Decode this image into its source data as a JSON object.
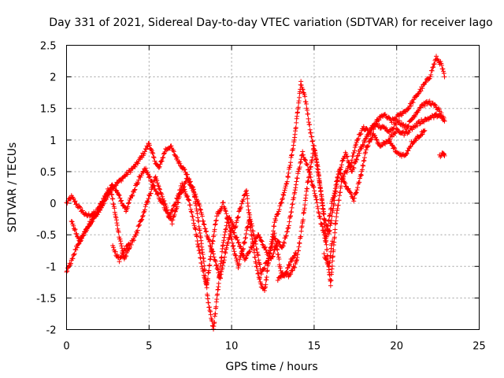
{
  "chart_data": {
    "type": "scatter",
    "title": "Day 331 of 2021, Sidereal Day-to-day VTEC variation (SDTVAR) for receiver Iago",
    "xlabel": "GPS time / hours",
    "ylabel": "SDTVAR / TECUs",
    "xlim": [
      0,
      25
    ],
    "ylim": [
      -2,
      2.5
    ],
    "xticks": [
      0,
      5,
      10,
      15,
      20,
      25
    ],
    "yticks": [
      -2,
      -1.5,
      -1,
      -0.5,
      0,
      0.5,
      1,
      1.5,
      2,
      2.5
    ],
    "grid": true,
    "marker": "plus",
    "series": [
      {
        "color": "#ff0000",
        "tracks": [
          [
            [
              0.0,
              0.0
            ],
            [
              0.3,
              0.1
            ],
            [
              0.7,
              -0.05
            ],
            [
              1.2,
              -0.2
            ],
            [
              1.8,
              -0.15
            ],
            [
              2.5,
              0.2
            ],
            [
              3.0,
              0.3
            ],
            [
              3.6,
              0.45
            ],
            [
              4.2,
              0.6
            ],
            [
              4.7,
              0.8
            ],
            [
              5.0,
              0.95
            ],
            [
              5.3,
              0.7
            ],
            [
              5.6,
              0.55
            ],
            [
              6.0,
              0.85
            ],
            [
              6.3,
              0.9
            ],
            [
              6.7,
              0.7
            ],
            [
              7.2,
              0.5
            ],
            [
              7.7,
              0.2
            ],
            [
              8.0,
              -0.3
            ],
            [
              8.3,
              -0.9
            ],
            [
              8.6,
              -1.6
            ],
            [
              8.9,
              -2.0
            ],
            [
              9.2,
              -1.3
            ],
            [
              9.5,
              -0.6
            ],
            [
              9.8,
              -0.2
            ],
            [
              10.2,
              -0.4
            ],
            [
              10.5,
              -0.1
            ],
            [
              10.9,
              0.2
            ],
            [
              11.2,
              -0.5
            ],
            [
              11.5,
              -1.0
            ],
            [
              11.8,
              -1.3
            ],
            [
              12.0,
              -1.4
            ],
            [
              12.3,
              -0.8
            ],
            [
              12.6,
              -0.3
            ],
            [
              13.0,
              0.0
            ],
            [
              13.4,
              0.4
            ],
            [
              13.8,
              1.0
            ],
            [
              14.2,
              1.9
            ],
            [
              14.5,
              1.6
            ],
            [
              14.8,
              1.1
            ],
            [
              15.2,
              0.6
            ],
            [
              15.5,
              0.0
            ],
            [
              15.8,
              -0.8
            ],
            [
              16.0,
              -1.3
            ],
            [
              16.3,
              -0.3
            ],
            [
              16.7,
              0.4
            ],
            [
              17.2,
              0.6
            ],
            [
              17.6,
              1.0
            ],
            [
              18.0,
              1.2
            ],
            [
              18.4,
              1.1
            ],
            [
              18.8,
              1.3
            ],
            [
              19.2,
              1.4
            ],
            [
              19.7,
              1.3
            ],
            [
              20.2,
              1.4
            ],
            [
              20.7,
              1.5
            ],
            [
              21.2,
              1.7
            ],
            [
              21.6,
              1.85
            ],
            [
              22.0,
              2.0
            ],
            [
              22.4,
              2.3
            ],
            [
              22.7,
              2.2
            ],
            [
              22.9,
              2.0
            ]
          ],
          [
            [
              0.0,
              -1.1
            ],
            [
              0.3,
              -0.9
            ],
            [
              0.6,
              -0.7
            ],
            [
              1.0,
              -0.5
            ],
            [
              1.5,
              -0.3
            ],
            [
              2.0,
              -0.1
            ],
            [
              2.4,
              0.1
            ],
            [
              2.8,
              0.3
            ],
            [
              3.2,
              0.1
            ],
            [
              3.6,
              -0.1
            ],
            [
              4.0,
              0.15
            ],
            [
              4.4,
              0.4
            ],
            [
              4.8,
              0.55
            ],
            [
              5.2,
              0.3
            ],
            [
              5.6,
              0.1
            ],
            [
              6.0,
              -0.1
            ],
            [
              6.4,
              -0.3
            ],
            [
              6.9,
              0.15
            ],
            [
              7.3,
              0.4
            ],
            [
              7.7,
              0.2
            ],
            [
              8.1,
              -0.1
            ],
            [
              8.5,
              -0.5
            ],
            [
              9.0,
              -0.9
            ],
            [
              9.3,
              -1.2
            ],
            [
              9.6,
              -0.8
            ],
            [
              10.0,
              -0.4
            ],
            [
              10.4,
              -0.6
            ],
            [
              10.8,
              -0.9
            ],
            [
              11.2,
              -0.7
            ],
            [
              11.6,
              -0.5
            ],
            [
              12.0,
              -0.7
            ],
            [
              12.4,
              -0.9
            ],
            [
              12.8,
              -0.6
            ],
            [
              13.1,
              -0.7
            ],
            [
              13.5,
              -0.3
            ],
            [
              13.9,
              0.3
            ],
            [
              14.3,
              0.8
            ],
            [
              14.7,
              0.5
            ],
            [
              15.1,
              0.1
            ],
            [
              15.4,
              -0.3
            ],
            [
              15.7,
              -0.6
            ],
            [
              16.0,
              -0.1
            ],
            [
              16.4,
              0.4
            ],
            [
              16.9,
              0.8
            ],
            [
              17.3,
              0.5
            ],
            [
              17.7,
              0.8
            ],
            [
              18.1,
              1.0
            ],
            [
              18.6,
              1.25
            ],
            [
              19.1,
              1.2
            ],
            [
              19.6,
              1.15
            ],
            [
              20.1,
              1.3
            ],
            [
              20.6,
              1.2
            ],
            [
              21.1,
              1.4
            ],
            [
              21.5,
              1.55
            ],
            [
              22.0,
              1.6
            ],
            [
              22.5,
              1.5
            ],
            [
              22.9,
              1.3
            ]
          ],
          [
            [
              0.3,
              -0.3
            ],
            [
              0.8,
              -0.6
            ],
            [
              1.2,
              -0.4
            ],
            [
              1.7,
              -0.2
            ],
            [
              2.2,
              0.0
            ],
            [
              2.7,
              0.2
            ],
            [
              3.1,
              -0.4
            ],
            [
              3.5,
              -0.9
            ],
            [
              3.8,
              -0.7
            ],
            [
              4.2,
              -0.5
            ],
            [
              4.6,
              -0.2
            ],
            [
              5.0,
              0.1
            ],
            [
              5.4,
              0.4
            ],
            [
              5.8,
              0.1
            ],
            [
              6.2,
              -0.2
            ],
            [
              6.6,
              0.0
            ],
            [
              7.0,
              0.3
            ],
            [
              7.4,
              0.05
            ],
            [
              7.8,
              -0.4
            ],
            [
              8.2,
              -1.0
            ],
            [
              8.5,
              -1.3
            ],
            [
              8.8,
              -0.7
            ],
            [
              9.1,
              -0.2
            ],
            [
              9.5,
              0.0
            ],
            [
              9.8,
              -0.3
            ],
            [
              10.1,
              -0.7
            ],
            [
              10.4,
              -1.0
            ],
            [
              10.8,
              -0.6
            ],
            [
              11.1,
              -0.2
            ],
            [
              11.5,
              -0.7
            ],
            [
              11.8,
              -1.1
            ],
            [
              12.2,
              -0.9
            ],
            [
              12.6,
              -0.5
            ],
            [
              13.0,
              -1.1
            ],
            [
              13.5,
              -1.15
            ],
            [
              13.9,
              -0.95
            ],
            [
              14.2,
              -0.5
            ],
            [
              14.6,
              0.3
            ],
            [
              15.0,
              0.9
            ],
            [
              15.3,
              0.4
            ],
            [
              15.6,
              -0.2
            ],
            [
              15.9,
              -0.5
            ],
            [
              16.2,
              0.0
            ],
            [
              16.5,
              0.5
            ],
            [
              17.0,
              0.25
            ],
            [
              17.4,
              0.05
            ],
            [
              17.8,
              0.4
            ],
            [
              18.2,
              0.9
            ],
            [
              18.6,
              1.1
            ],
            [
              19.0,
              0.9
            ],
            [
              19.5,
              1.0
            ],
            [
              20.0,
              1.15
            ],
            [
              20.5,
              1.1
            ],
            [
              21.0,
              1.2
            ],
            [
              21.5,
              1.3
            ],
            [
              22.0,
              1.35
            ],
            [
              22.5,
              1.4
            ],
            [
              22.9,
              1.3
            ]
          ],
          [
            [
              19.5,
              1.0
            ],
            [
              20.0,
              0.8
            ],
            [
              20.5,
              0.75
            ],
            [
              20.9,
              0.95
            ],
            [
              21.3,
              1.05
            ],
            [
              21.7,
              1.15
            ]
          ],
          [
            [
              22.6,
              0.75
            ],
            [
              22.8,
              0.8
            ],
            [
              22.9,
              0.75
            ]
          ],
          [
            [
              2.8,
              -0.7
            ],
            [
              3.2,
              -0.9
            ],
            [
              3.5,
              -0.75
            ],
            [
              3.8,
              -0.65
            ]
          ],
          [
            [
              12.8,
              -1.2
            ],
            [
              13.2,
              -1.15
            ],
            [
              13.6,
              -0.9
            ],
            [
              13.9,
              -0.8
            ]
          ],
          [
            [
              15.6,
              -0.8
            ],
            [
              15.9,
              -1.0
            ],
            [
              16.1,
              -0.6
            ]
          ]
        ]
      }
    ]
  }
}
